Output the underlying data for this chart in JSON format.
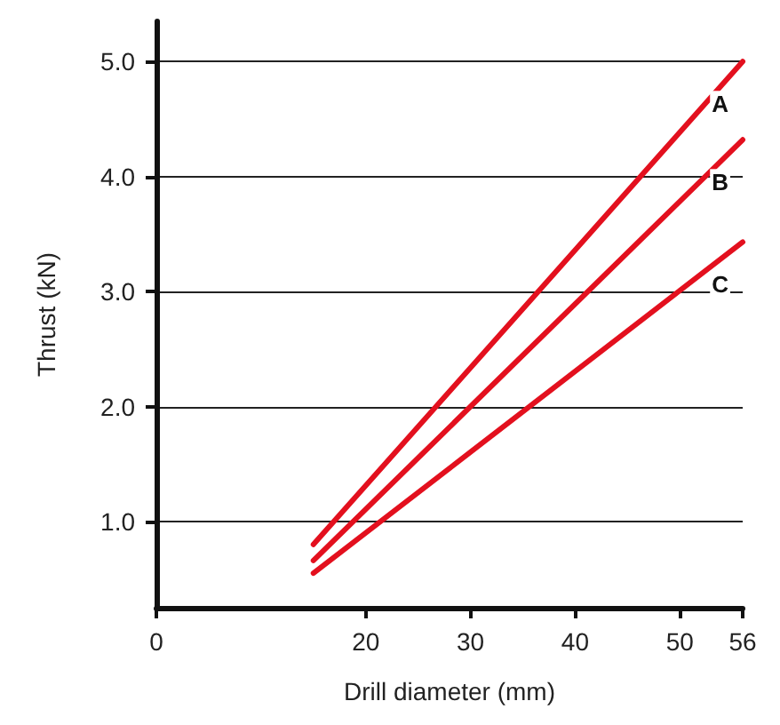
{
  "chart_data": {
    "type": "line",
    "xlabel": "Drill diameter (mm)",
    "ylabel": "Thrust (kN)",
    "xlim": [
      0,
      56
    ],
    "xticks": [
      0,
      20,
      30,
      40,
      50,
      56
    ],
    "ylim": [
      0.25,
      5.35
    ],
    "yticks": [
      {
        "value": 1,
        "label": "1.0"
      },
      {
        "value": 2,
        "label": "2.0"
      },
      {
        "value": 3,
        "label": "3.0"
      },
      {
        "value": 4,
        "label": "4.0"
      },
      {
        "value": 5,
        "label": "5.0"
      }
    ],
    "grid": "y",
    "legend": false,
    "line_style": "solid",
    "x": [
      15,
      56
    ],
    "series": [
      {
        "name": "A",
        "color": "#e3101e",
        "values": [
          0.8,
          5.0
        ]
      },
      {
        "name": "B",
        "color": "#e3101e",
        "values": [
          0.66,
          4.32
        ]
      },
      {
        "name": "C",
        "color": "#e3101e",
        "values": [
          0.55,
          3.43
        ]
      }
    ]
  }
}
